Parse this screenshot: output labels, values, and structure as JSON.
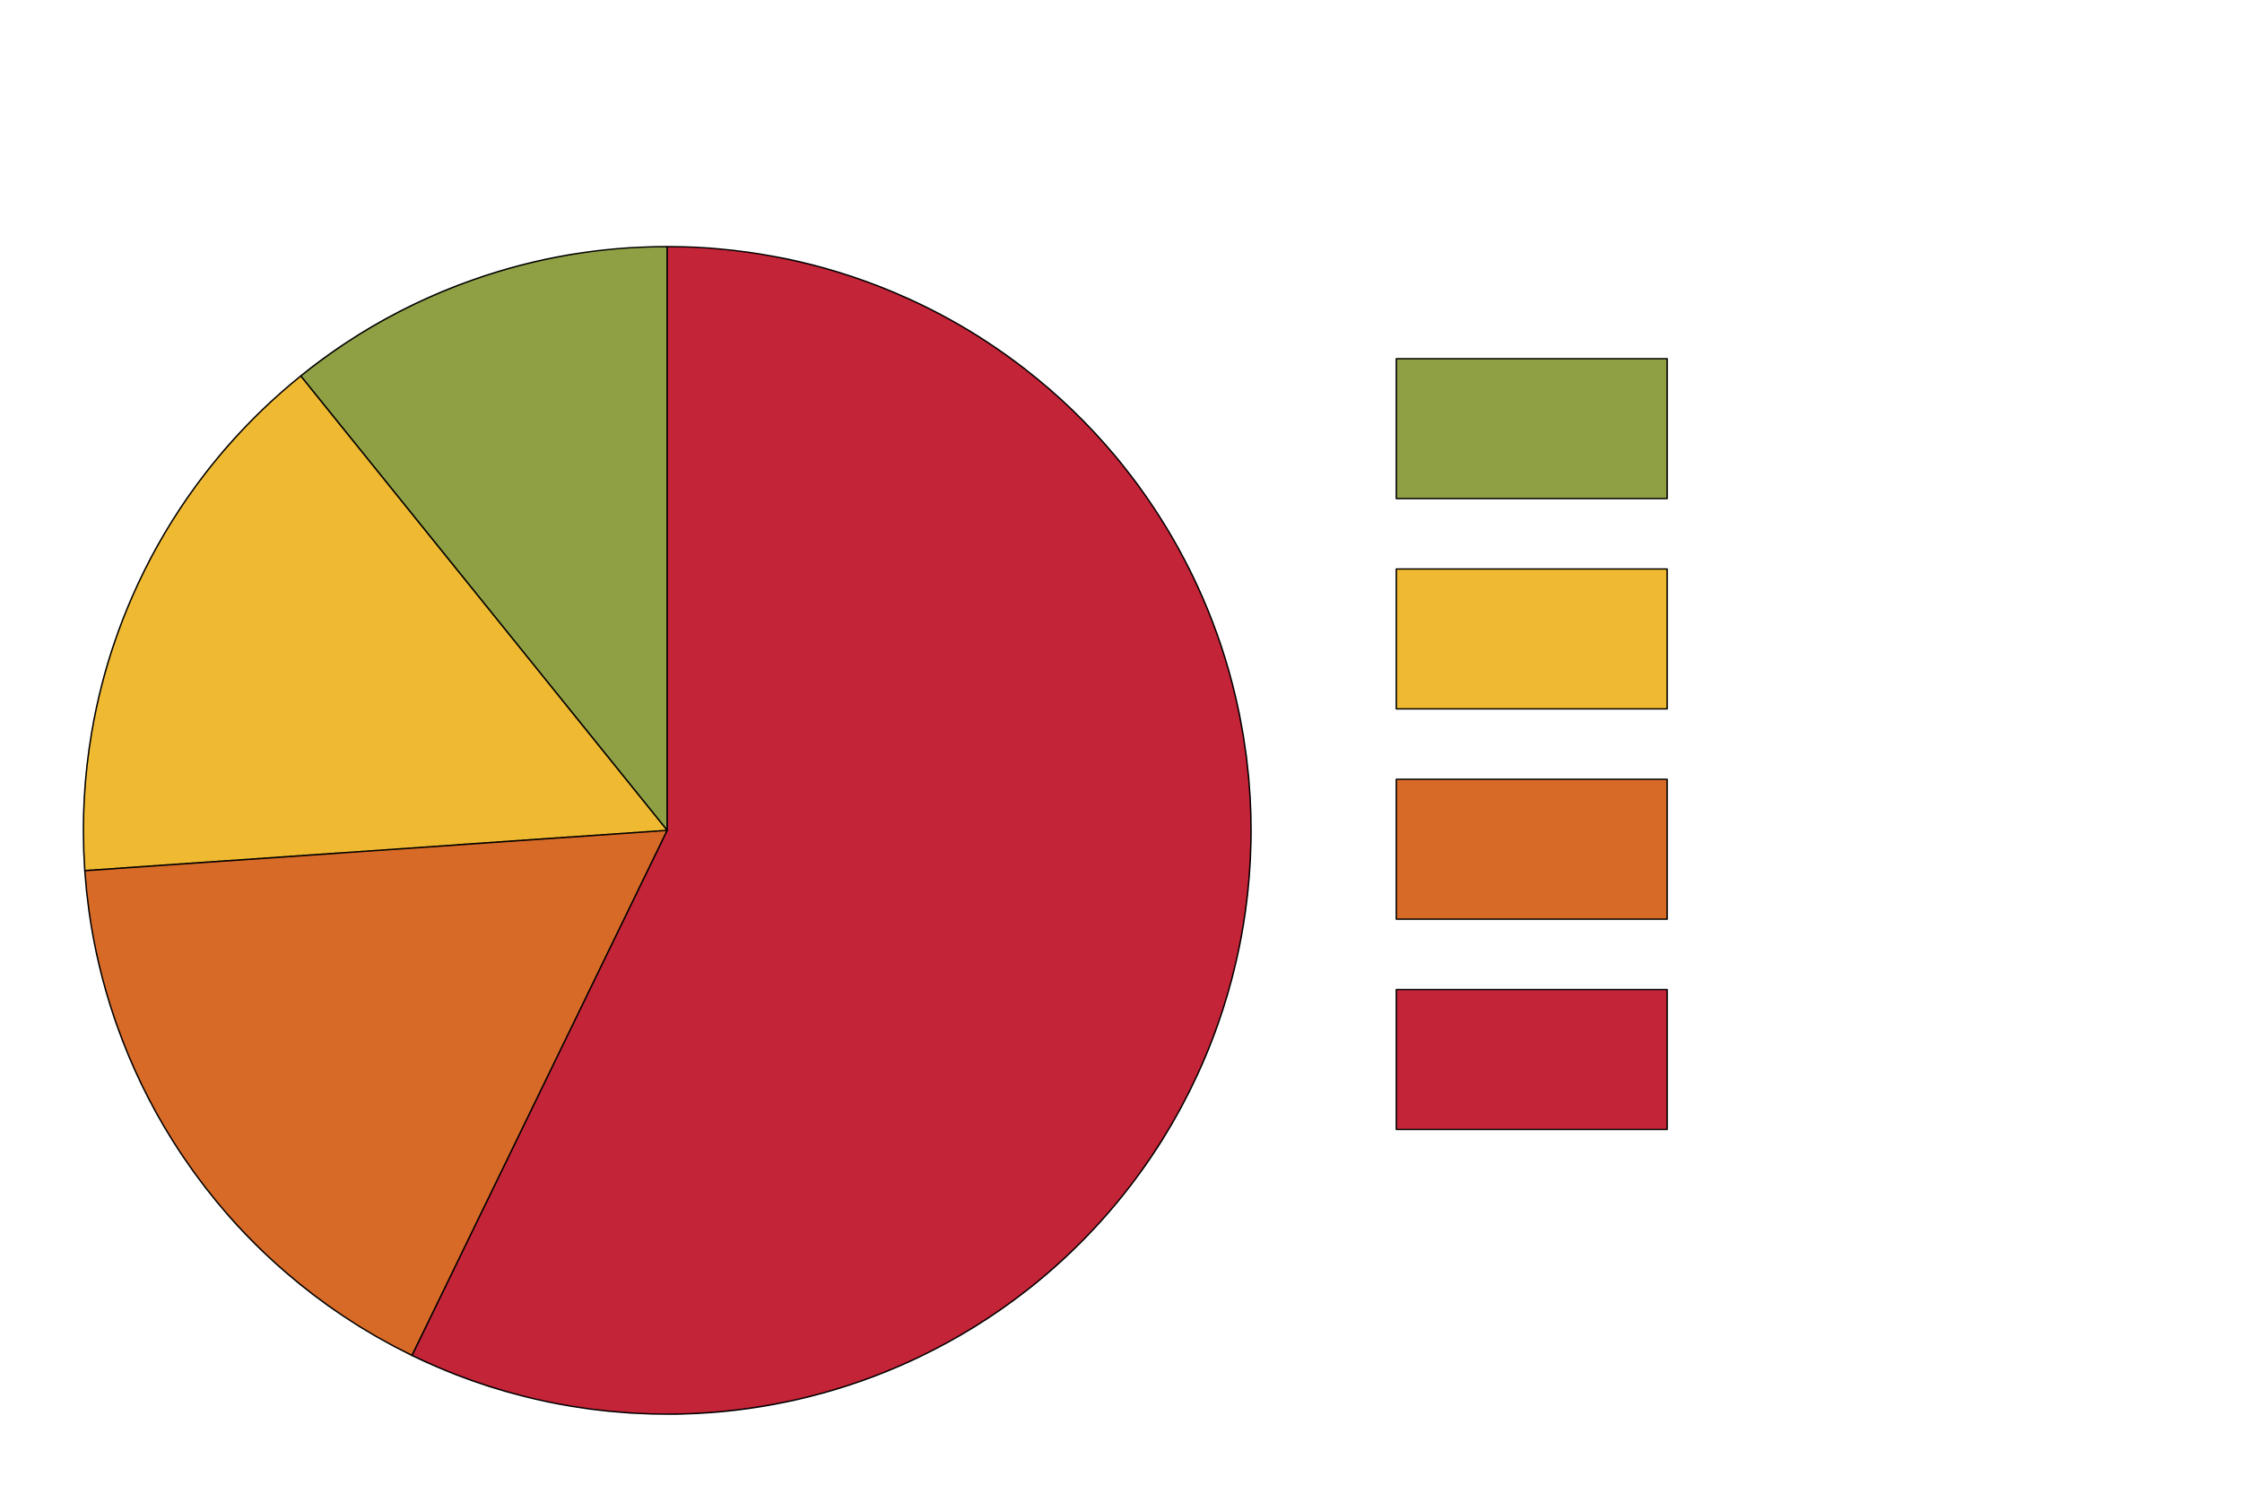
{
  "chart_data": {
    "type": "pie",
    "values": [
      10.8,
      15.3,
      16.7,
      57.2
    ],
    "colors": [
      "#8fa044",
      "#efb932",
      "#d76a27",
      "#c42437"
    ],
    "legend": "right"
  }
}
